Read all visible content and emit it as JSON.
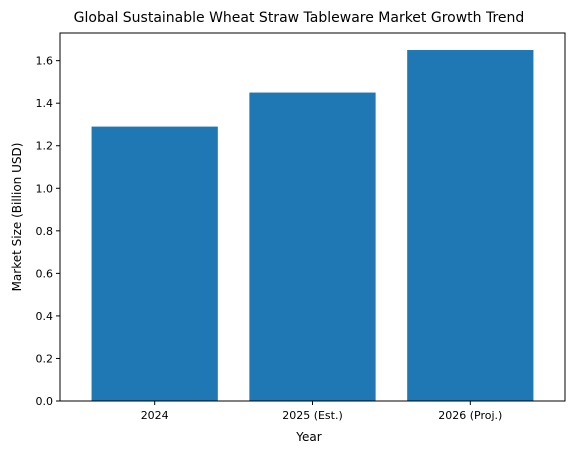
{
  "chart_data": {
    "type": "bar",
    "title": "Global Sustainable Wheat Straw Tableware Market Growth Trend",
    "xlabel": "Year",
    "ylabel": "Market Size (Billion USD)",
    "categories": [
      "2024",
      "2025 (Est.)",
      "2026 (Proj.)"
    ],
    "values": [
      1.29,
      1.45,
      1.65
    ],
    "ylim": [
      0,
      1.73
    ],
    "yticks": [
      "0.0",
      "0.2",
      "0.4",
      "0.6",
      "0.8",
      "1.0",
      "1.2",
      "1.4",
      "1.6"
    ],
    "grid": false,
    "bar_color": "#1f77b4"
  }
}
